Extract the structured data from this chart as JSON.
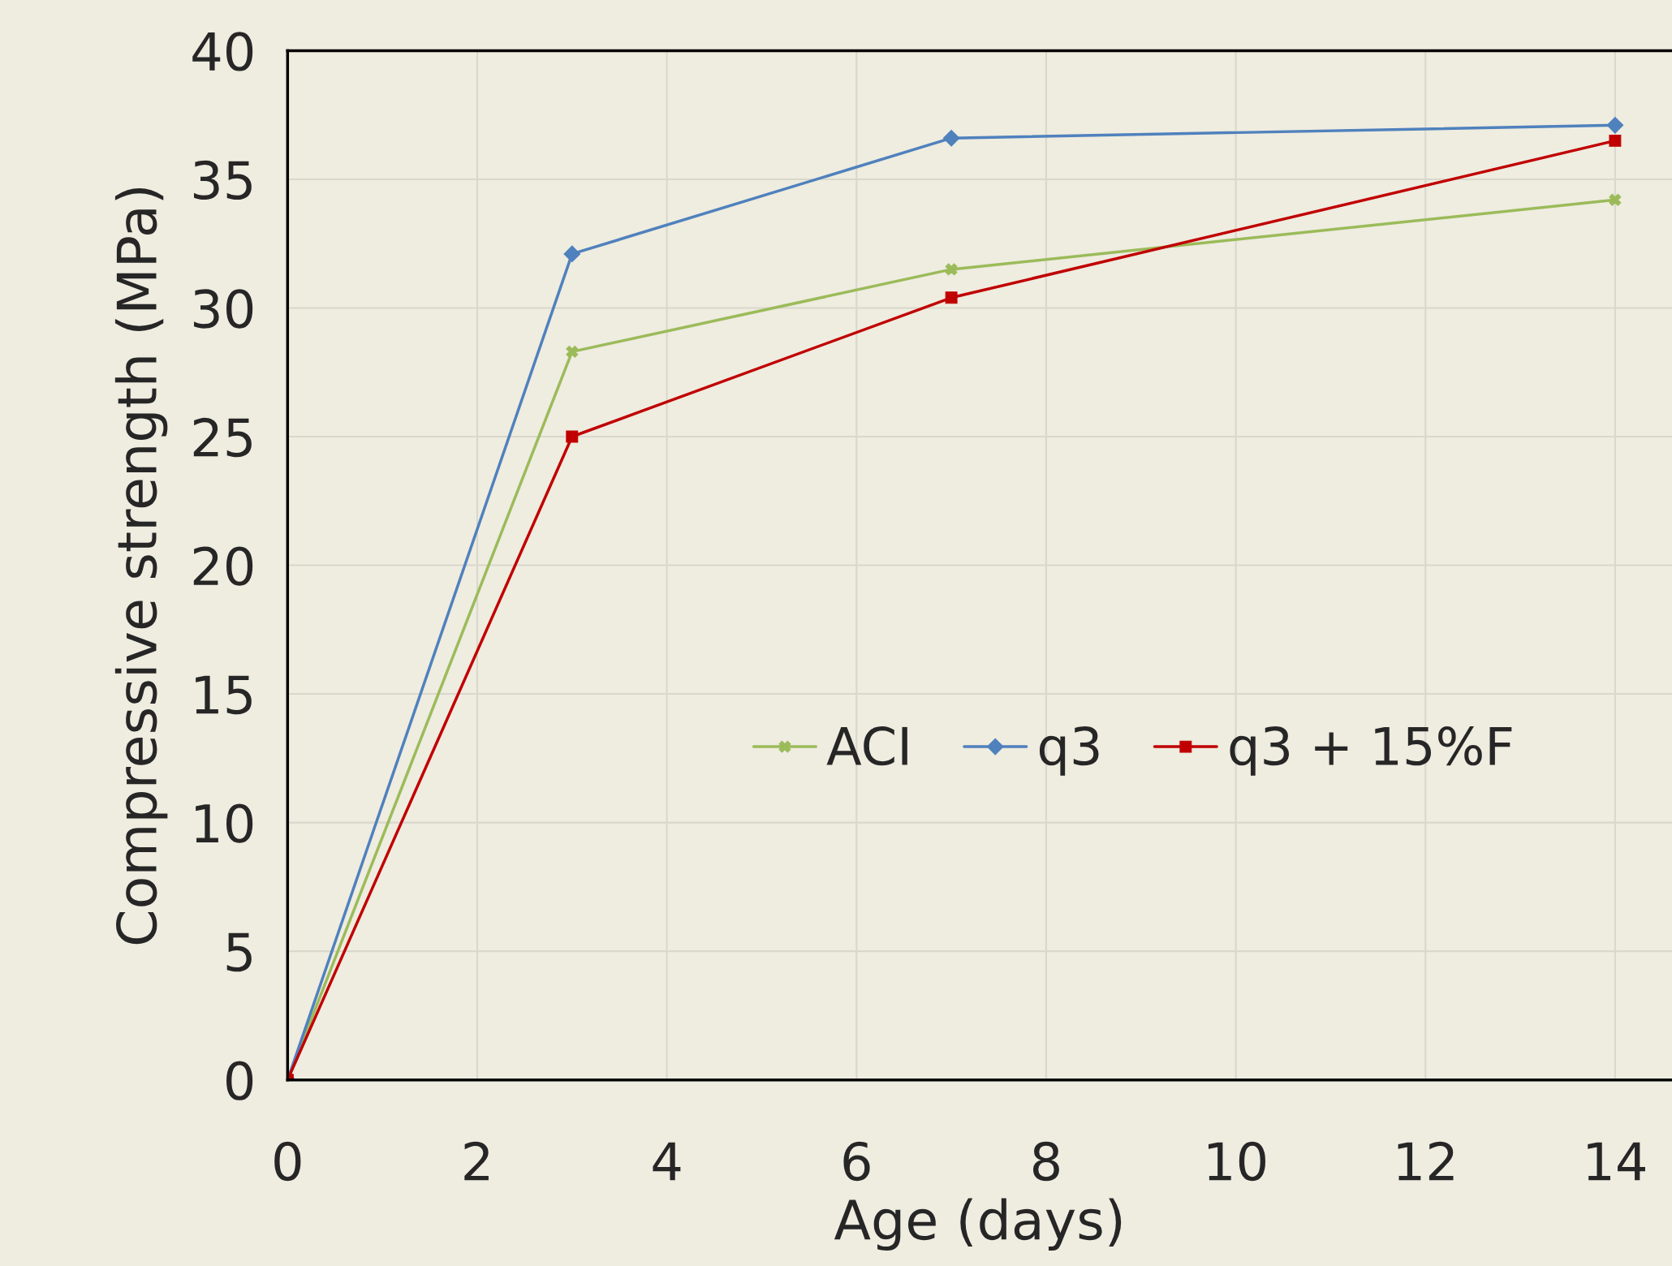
{
  "chart_data": {
    "type": "line",
    "xlabel": "Age (days)",
    "ylabel": "Compressive strength (MPa)",
    "x": [
      0,
      3,
      7,
      14
    ],
    "series": [
      {
        "name": "ACI",
        "color": "#9bbb59",
        "marker": "cross",
        "values": [
          0,
          28.3,
          31.5,
          34.2
        ]
      },
      {
        "name": "q3",
        "color": "#4f81bd",
        "marker": "diamond",
        "values": [
          0,
          32.1,
          36.6,
          37.1
        ]
      },
      {
        "name": "q3 + 15%F",
        "color": "#c00000",
        "marker": "square",
        "values": [
          0,
          25,
          30.4,
          36.5
        ]
      }
    ],
    "xlim": [
      0,
      14.6
    ],
    "xticks": [
      0,
      2,
      4,
      6,
      8,
      10,
      12,
      14
    ],
    "ylim": [
      0,
      40
    ],
    "yticks": [
      0,
      5,
      10,
      15,
      20,
      25,
      30,
      35,
      40
    ],
    "grid": true,
    "legend": "right",
    "line_style": "solid"
  }
}
